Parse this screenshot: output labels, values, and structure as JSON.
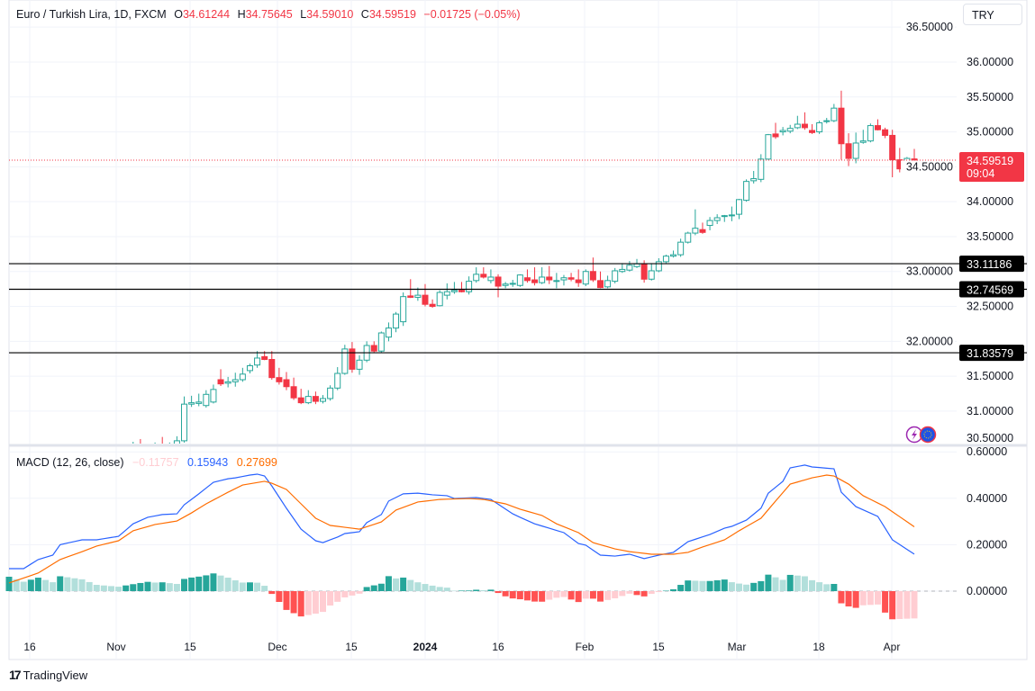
{
  "header": {
    "symbol": "Euro / Turkish Lira, 1D, FXCM",
    "open_label": "O",
    "open": "34.61244",
    "high_label": "H",
    "high": "34.75645",
    "low_label": "L",
    "low": "34.59010",
    "close_label": "C",
    "close": "34.59519",
    "change": "−0.01725 (−0.05%)"
  },
  "currency_button": "TRY",
  "macd_legend": {
    "title": "MACD (12, 26, close)",
    "histogram": "−0.11757",
    "macd": "0.15943",
    "signal": "0.27699"
  },
  "brand": "TradingView",
  "colors": {
    "up": "#26a69a",
    "down": "#f23645",
    "macd": "#2962ff",
    "signal": "#ff6d00",
    "hist_up_strong": "#26a69a",
    "hist_up_weak": "#b2dfdb",
    "hist_down_strong": "#ff5252",
    "hist_down_weak": "#ffcdd2",
    "level_line": "#000000"
  },
  "chart_data": [
    {
      "type": "candlestick",
      "title": "Euro / Turkish Lira, 1D, FXCM",
      "ylim": [
        30.535,
        36.889
      ],
      "y_ticks": [
        "30.50000",
        "31.00000",
        "31.50000",
        "32.00000",
        "32.50000",
        "33.00000",
        "33.50000",
        "34.00000",
        "34.50000",
        "35.00000",
        "35.50000",
        "36.00000",
        "36.50000"
      ],
      "x_ticks": [
        "16",
        "Nov",
        "15",
        "Dec",
        "15",
        "2024",
        "16",
        "Feb",
        "15",
        "Mar",
        "18",
        "Apr"
      ],
      "grid": true,
      "horizontal_levels": [
        "33.11186",
        "32.74569",
        "31.83579"
      ],
      "last_price": "34.59519",
      "countdown": "09:04",
      "ohlc": [
        [
          30.38,
          30.56,
          30.3,
          30.45
        ],
        [
          30.48,
          30.6,
          30.35,
          30.4
        ],
        [
          30.4,
          30.52,
          30.32,
          30.45
        ],
        [
          30.44,
          30.55,
          30.36,
          30.48
        ],
        [
          30.5,
          30.63,
          30.4,
          30.45
        ],
        [
          30.45,
          30.55,
          30.4,
          30.5
        ],
        [
          30.52,
          30.64,
          30.48,
          30.575
        ],
        [
          30.575,
          31.21,
          30.55,
          31.1
        ],
        [
          31.1,
          31.22,
          31.06,
          31.12
        ],
        [
          31.11,
          31.25,
          31.07,
          31.13
        ],
        [
          31.08,
          31.3,
          31.05,
          31.24
        ],
        [
          31.13,
          31.38,
          31.11,
          31.31
        ],
        [
          31.45,
          31.6,
          31.36,
          31.39
        ],
        [
          31.4,
          31.49,
          31.34,
          31.42
        ],
        [
          31.42,
          31.55,
          31.35,
          31.45
        ],
        [
          31.45,
          31.62,
          31.42,
          31.53
        ],
        [
          31.58,
          31.68,
          31.54,
          31.65
        ],
        [
          31.66,
          31.86,
          31.62,
          31.76
        ],
        [
          31.78,
          31.86,
          31.73,
          31.74
        ],
        [
          31.74,
          31.86,
          31.45,
          31.48
        ],
        [
          31.48,
          31.62,
          31.38,
          31.42
        ],
        [
          31.45,
          31.56,
          31.3,
          31.35
        ],
        [
          31.35,
          31.48,
          31.16,
          31.19
        ],
        [
          31.19,
          31.32,
          31.1,
          31.12
        ],
        [
          31.12,
          31.3,
          31.1,
          31.21
        ],
        [
          31.21,
          31.28,
          31.1,
          31.14
        ],
        [
          31.14,
          31.23,
          31.11,
          31.18
        ],
        [
          31.18,
          31.37,
          31.15,
          31.33
        ],
        [
          31.33,
          31.63,
          31.3,
          31.54
        ],
        [
          31.54,
          31.95,
          31.52,
          31.89
        ],
        [
          31.89,
          31.99,
          31.55,
          31.6
        ],
        [
          31.6,
          31.8,
          31.52,
          31.73
        ],
        [
          31.73,
          32.0,
          31.7,
          31.94
        ],
        [
          31.94,
          32.0,
          31.83,
          31.86
        ],
        [
          31.86,
          32.14,
          31.84,
          32.12
        ],
        [
          32.06,
          32.27,
          32.0,
          32.19
        ],
        [
          32.19,
          32.42,
          32.13,
          32.39
        ],
        [
          32.28,
          32.7,
          32.22,
          32.64
        ],
        [
          32.65,
          32.89,
          32.62,
          32.63
        ],
        [
          32.63,
          32.77,
          32.58,
          32.66
        ],
        [
          32.66,
          32.82,
          32.5,
          32.53
        ],
        [
          32.53,
          32.6,
          32.48,
          32.5
        ],
        [
          32.51,
          32.73,
          32.5,
          32.7
        ],
        [
          32.66,
          32.83,
          32.6,
          32.71
        ],
        [
          32.71,
          32.85,
          32.68,
          32.73
        ],
        [
          32.73,
          32.85,
          32.7,
          32.71
        ],
        [
          32.71,
          32.93,
          32.67,
          32.86
        ],
        [
          32.87,
          33.06,
          32.84,
          32.96
        ],
        [
          32.96,
          33.06,
          32.9,
          32.92
        ],
        [
          32.87,
          33.03,
          32.83,
          32.92
        ],
        [
          32.92,
          32.96,
          32.63,
          32.79
        ],
        [
          32.8,
          32.85,
          32.76,
          32.82
        ],
        [
          32.82,
          32.88,
          32.78,
          32.83
        ],
        [
          32.8,
          32.96,
          32.78,
          32.95
        ],
        [
          32.91,
          33.03,
          32.84,
          32.87
        ],
        [
          32.88,
          33.06,
          32.8,
          32.84
        ],
        [
          32.84,
          33.06,
          32.82,
          32.92
        ],
        [
          32.92,
          33.08,
          32.82,
          32.88
        ],
        [
          32.86,
          32.98,
          32.76,
          32.87
        ],
        [
          32.88,
          32.95,
          32.8,
          32.91
        ],
        [
          32.91,
          32.98,
          32.86,
          32.89
        ],
        [
          32.88,
          33.03,
          32.78,
          32.84
        ],
        [
          32.82,
          33.03,
          32.79,
          33.0
        ],
        [
          33.0,
          33.2,
          32.85,
          32.88
        ],
        [
          32.87,
          33.0,
          32.76,
          32.77
        ],
        [
          32.78,
          32.94,
          32.76,
          32.87
        ],
        [
          32.86,
          33.05,
          32.83,
          33.01
        ],
        [
          33.0,
          33.12,
          32.98,
          33.03
        ],
        [
          33.02,
          33.15,
          33.0,
          33.09
        ],
        [
          33.07,
          33.18,
          33.05,
          33.11
        ],
        [
          33.11,
          33.16,
          32.84,
          32.89
        ],
        [
          32.89,
          33.12,
          32.87,
          33.01
        ],
        [
          33.01,
          33.19,
          32.99,
          33.14
        ],
        [
          33.14,
          33.24,
          33.12,
          33.22
        ],
        [
          33.22,
          33.3,
          33.2,
          33.24
        ],
        [
          33.24,
          33.47,
          33.21,
          33.42
        ],
        [
          33.42,
          33.57,
          33.4,
          33.55
        ],
        [
          33.55,
          33.89,
          33.52,
          33.62
        ],
        [
          33.6,
          33.7,
          33.54,
          33.56
        ],
        [
          33.66,
          33.78,
          33.59,
          33.73
        ],
        [
          33.73,
          33.82,
          33.68,
          33.77
        ],
        [
          33.79,
          33.81,
          33.71,
          33.8
        ],
        [
          33.8,
          33.93,
          33.72,
          33.81
        ],
        [
          33.82,
          34.04,
          33.75,
          34.03
        ],
        [
          34.02,
          34.32,
          34.0,
          34.29
        ],
        [
          34.3,
          34.44,
          34.26,
          34.33
        ],
        [
          34.32,
          34.68,
          34.28,
          34.61
        ],
        [
          34.61,
          34.97,
          34.6,
          34.96
        ],
        [
          34.97,
          35.13,
          34.9,
          34.93
        ],
        [
          35.0,
          35.07,
          34.95,
          35.02
        ],
        [
          35.01,
          35.1,
          34.98,
          35.05
        ],
        [
          35.06,
          35.23,
          35.04,
          35.11
        ],
        [
          35.11,
          35.28,
          35.03,
          35.06
        ],
        [
          35.02,
          35.11,
          34.97,
          34.99
        ],
        [
          35.0,
          35.16,
          34.97,
          35.13
        ],
        [
          35.15,
          35.2,
          35.12,
          35.16
        ],
        [
          35.16,
          35.4,
          35.14,
          35.34
        ],
        [
          35.34,
          35.59,
          34.6,
          34.83
        ],
        [
          34.83,
          34.98,
          34.51,
          34.62
        ],
        [
          34.62,
          34.99,
          34.55,
          34.84
        ],
        [
          34.85,
          35.03,
          34.83,
          34.87
        ],
        [
          34.87,
          35.12,
          34.85,
          35.09
        ],
        [
          35.09,
          35.18,
          35.02,
          35.03
        ],
        [
          35.03,
          35.06,
          34.91,
          34.95
        ],
        [
          34.95,
          35.03,
          34.35,
          34.6
        ],
        [
          34.6,
          34.77,
          34.42,
          34.47
        ],
        [
          34.47,
          34.64,
          34.43,
          34.62
        ],
        [
          34.61244,
          34.75645,
          34.5901,
          34.59519
        ]
      ]
    },
    {
      "type": "line",
      "title": "MACD (12, 26, close)",
      "ylim": [
        -0.2,
        0.6
      ],
      "y_ticks": [
        "0.00000",
        "0.20000",
        "0.40000",
        "0.60000"
      ],
      "bars": 125,
      "series": [
        {
          "name": "MACD",
          "points": [
            [
              0,
              0.097
            ],
            [
              2,
              0.097
            ],
            [
              4,
              0.136
            ],
            [
              6,
              0.155
            ],
            [
              7,
              0.2
            ],
            [
              10,
              0.221
            ],
            [
              12,
              0.221
            ],
            [
              15,
              0.236
            ],
            [
              17,
              0.29
            ],
            [
              19,
              0.318
            ],
            [
              21,
              0.33
            ],
            [
              23,
              0.333
            ],
            [
              24,
              0.372
            ],
            [
              26,
              0.419
            ],
            [
              28,
              0.469
            ],
            [
              30,
              0.484
            ],
            [
              31,
              0.488
            ],
            [
              33,
              0.5
            ],
            [
              34,
              0.504
            ],
            [
              35,
              0.496
            ],
            [
              36,
              0.453
            ],
            [
              38,
              0.357
            ],
            [
              40,
              0.267
            ],
            [
              42,
              0.217
            ],
            [
              43,
              0.209
            ],
            [
              45,
              0.233
            ],
            [
              46,
              0.248
            ],
            [
              48,
              0.256
            ],
            [
              49,
              0.295
            ],
            [
              51,
              0.33
            ],
            [
              52,
              0.388
            ],
            [
              54,
              0.419
            ],
            [
              56,
              0.422
            ],
            [
              58,
              0.415
            ],
            [
              60,
              0.411
            ],
            [
              61,
              0.399
            ],
            [
              64,
              0.403
            ],
            [
              66,
              0.395
            ],
            [
              69,
              0.333
            ],
            [
              70,
              0.318
            ],
            [
              72,
              0.29
            ],
            [
              74,
              0.271
            ],
            [
              76,
              0.252
            ],
            [
              78,
              0.205
            ],
            [
              79,
              0.198
            ],
            [
              81,
              0.155
            ],
            [
              83,
              0.151
            ],
            [
              85,
              0.159
            ],
            [
              87,
              0.14
            ],
            [
              89,
              0.155
            ],
            [
              91,
              0.167
            ],
            [
              93,
              0.213
            ],
            [
              96,
              0.244
            ],
            [
              98,
              0.271
            ],
            [
              99,
              0.279
            ],
            [
              101,
              0.306
            ],
            [
              103,
              0.357
            ],
            [
              104,
              0.422
            ],
            [
              106,
              0.473
            ],
            [
              107,
              0.531
            ],
            [
              109,
              0.543
            ],
            [
              110,
              0.535
            ],
            [
              113,
              0.527
            ],
            [
              114,
              0.426
            ],
            [
              116,
              0.364
            ],
            [
              119,
              0.322
            ],
            [
              121,
              0.221
            ],
            [
              124,
              0.15943
            ]
          ]
        },
        {
          "name": "Signal",
          "points": [
            [
              0,
              0.035
            ],
            [
              4,
              0.078
            ],
            [
              7,
              0.136
            ],
            [
              10,
              0.17
            ],
            [
              12,
              0.194
            ],
            [
              15,
              0.217
            ],
            [
              17,
              0.26
            ],
            [
              20,
              0.287
            ],
            [
              23,
              0.302
            ],
            [
              25,
              0.337
            ],
            [
              27,
              0.376
            ],
            [
              30,
              0.426
            ],
            [
              32,
              0.457
            ],
            [
              35,
              0.473
            ],
            [
              36,
              0.465
            ],
            [
              38,
              0.438
            ],
            [
              40,
              0.376
            ],
            [
              42,
              0.314
            ],
            [
              44,
              0.283
            ],
            [
              46,
              0.275
            ],
            [
              48,
              0.267
            ],
            [
              51,
              0.298
            ],
            [
              53,
              0.349
            ],
            [
              56,
              0.384
            ],
            [
              59,
              0.395
            ],
            [
              63,
              0.399
            ],
            [
              65,
              0.395
            ],
            [
              68,
              0.376
            ],
            [
              70,
              0.353
            ],
            [
              73,
              0.326
            ],
            [
              75,
              0.29
            ],
            [
              78,
              0.252
            ],
            [
              80,
              0.209
            ],
            [
              83,
              0.182
            ],
            [
              85,
              0.17
            ],
            [
              88,
              0.159
            ],
            [
              91,
              0.159
            ],
            [
              93,
              0.167
            ],
            [
              95,
              0.19
            ],
            [
              98,
              0.221
            ],
            [
              100,
              0.26
            ],
            [
              103,
              0.314
            ],
            [
              105,
              0.388
            ],
            [
              107,
              0.461
            ],
            [
              110,
              0.488
            ],
            [
              112,
              0.5
            ],
            [
              113,
              0.496
            ],
            [
              115,
              0.461
            ],
            [
              117,
              0.411
            ],
            [
              120,
              0.364
            ],
            [
              124,
              0.27699
            ]
          ]
        }
      ],
      "histogram": "MACD − Signal"
    }
  ]
}
